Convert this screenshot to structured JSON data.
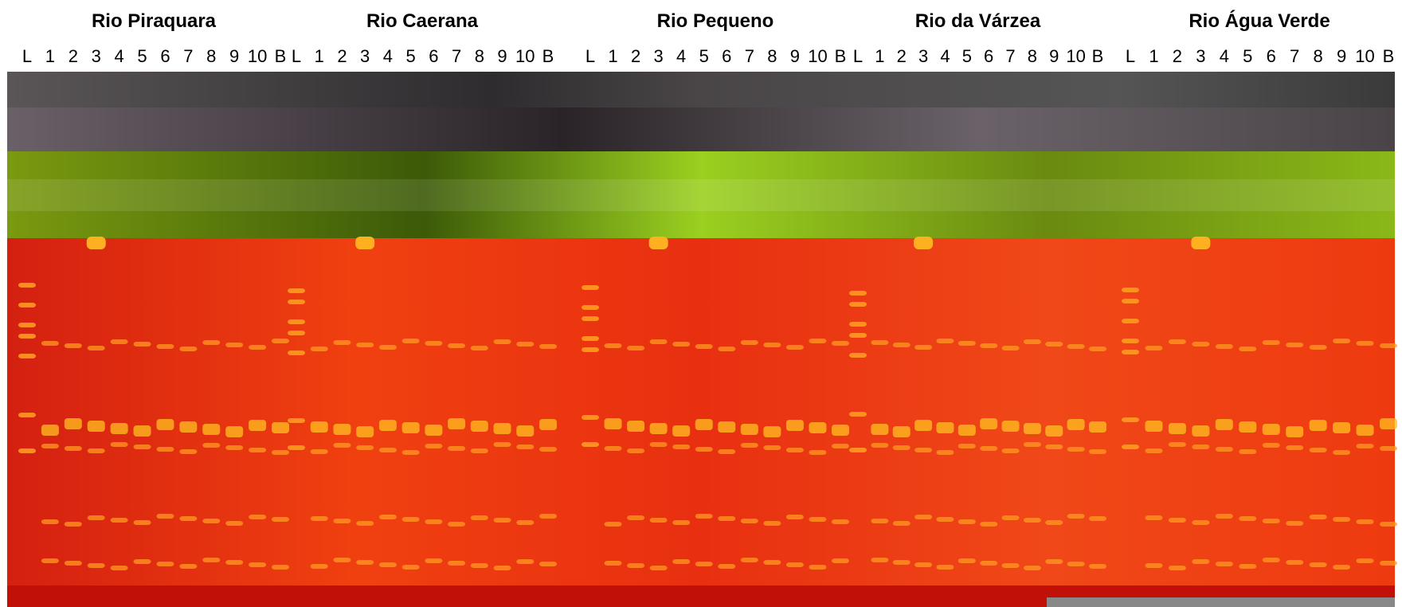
{
  "groups": [
    {
      "title": "Rio Piraquara",
      "lanes": [
        "L",
        "1",
        "2",
        "3",
        "4",
        "5",
        "6",
        "7",
        "8",
        "9",
        "10",
        "B"
      ]
    },
    {
      "title": "Rio Caerana",
      "lanes": [
        "L",
        "1",
        "2",
        "3",
        "4",
        "5",
        "6",
        "7",
        "8",
        "9",
        "10",
        "B"
      ]
    },
    {
      "title": "Rio Pequeno",
      "lanes": [
        "L",
        "1",
        "2",
        "3",
        "4",
        "5",
        "6",
        "7",
        "8",
        "9",
        "10",
        "B"
      ]
    },
    {
      "title": "Rio da Várzea",
      "lanes": [
        "L",
        "1",
        "2",
        "3",
        "4",
        "5",
        "6",
        "7",
        "8",
        "9",
        "10",
        "B"
      ]
    },
    {
      "title": "Rio Água Verde",
      "lanes": [
        "L",
        "1",
        "2",
        "3",
        "4",
        "5",
        "6",
        "7",
        "8",
        "9",
        "10",
        "B"
      ]
    }
  ]
}
